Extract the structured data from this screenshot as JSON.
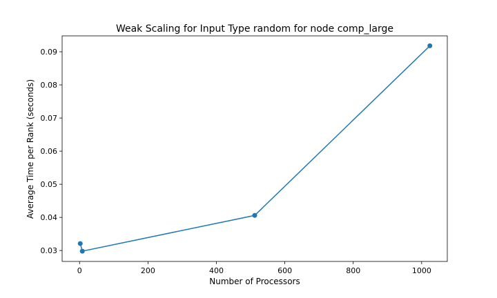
{
  "chart_data": {
    "type": "line",
    "title": "Weak Scaling for Input Type random for node comp_large",
    "xlabel": "Number of Processors",
    "ylabel": "Average Time per Rank (seconds)",
    "xlim": [
      -51,
      1075
    ],
    "ylim": [
      0.0267,
      0.0948
    ],
    "xticks": [
      0,
      200,
      400,
      600,
      800,
      1000
    ],
    "xtick_labels": [
      "0",
      "200",
      "400",
      "600",
      "800",
      "1000"
    ],
    "yticks": [
      0.03,
      0.04,
      0.05,
      0.06,
      0.07,
      0.08,
      0.09
    ],
    "ytick_labels": [
      "0.03",
      "0.04",
      "0.05",
      "0.06",
      "0.07",
      "0.08",
      "0.09"
    ],
    "grid": false,
    "legend": false,
    "series": [
      {
        "color": "#1f77b4",
        "marker": "circle",
        "x": [
          2,
          8,
          512,
          1024
        ],
        "y": [
          0.0321,
          0.0298,
          0.0406,
          0.0918
        ]
      }
    ]
  }
}
